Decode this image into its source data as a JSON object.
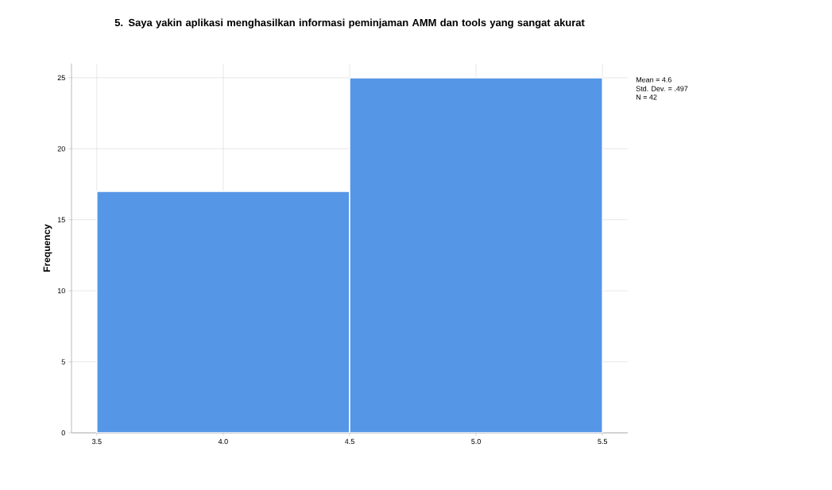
{
  "chart_data": {
    "type": "histogram",
    "title": "5. Saya yakin aplikasi menghasilkan informasi peminjaman AMM dan tools yang sangat akurat",
    "ylabel": "Frequency",
    "bins": [
      3.5,
      4.5,
      5.5
    ],
    "values": [
      17,
      25
    ],
    "color": "#5596e6",
    "xlim": [
      3.4,
      5.6
    ],
    "ylim": [
      0,
      26
    ],
    "xticks": [
      3.5,
      {
        "value": 4.0,
        "label": "4.0"
      },
      4.5,
      {
        "value": 5.0,
        "label": "5.0"
      },
      5.5
    ],
    "yticks": [
      0,
      5,
      10,
      15,
      20,
      25
    ],
    "grid": true,
    "annotations": [
      "Mean = 4.6",
      "Std. Dev. = .497",
      "N = 42"
    ]
  }
}
